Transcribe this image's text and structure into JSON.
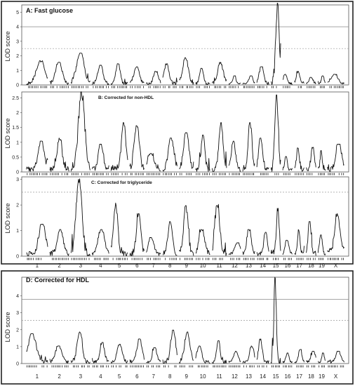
{
  "chart_data": [
    {
      "type": "line",
      "title": "A: Fast glucose",
      "ylabel": "LOD score",
      "ylim": [
        0,
        5.5
      ],
      "yticks": [
        "0",
        "1",
        "2",
        "3",
        "4",
        "5"
      ],
      "thresholds": {
        "solid": 4.0,
        "dashed": 2.5
      },
      "x_categories": [
        "1",
        "2",
        "3",
        "4",
        "5",
        "6",
        "7",
        "8",
        "9",
        "10",
        "11",
        "12",
        "13",
        "14",
        "15",
        "16",
        "17",
        "18",
        "19",
        "X"
      ],
      "show_x_labels": false,
      "peaks": [
        1.6,
        1.5,
        2.1,
        1.3,
        1.4,
        1.2,
        0.9,
        1.4,
        1.8,
        1.1,
        1.5,
        0.6,
        0.6,
        1.2,
        5.4,
        0.7,
        0.9,
        0.5,
        0.6,
        0.7
      ]
    },
    {
      "type": "line",
      "title": "B: Corrected for non-HDL",
      "ylabel": "LOD score",
      "ylim": [
        0,
        2.7
      ],
      "yticks": [
        "0",
        "0.5",
        "1",
        "1.5",
        "2",
        "2.5"
      ],
      "thresholds": {},
      "x_categories": [
        "1",
        "2",
        "3",
        "4",
        "5",
        "6",
        "7",
        "8",
        "9",
        "10",
        "11",
        "12",
        "13",
        "14",
        "15",
        "16",
        "17",
        "18",
        "19",
        "X"
      ],
      "show_x_labels": false,
      "peaks": [
        1.0,
        1.1,
        2.6,
        0.9,
        1.6,
        1.5,
        0.6,
        1.1,
        1.3,
        1.2,
        1.6,
        1.0,
        1.6,
        1.1,
        2.5,
        0.5,
        0.8,
        0.8,
        0.7,
        0.9
      ]
    },
    {
      "type": "line",
      "title": "C: Corrected for triglyceride",
      "ylabel": "LOD score",
      "ylim": [
        0,
        3.1
      ],
      "yticks": [
        "0",
        "1",
        "2",
        "3"
      ],
      "thresholds": {
        "dashed": 2.5
      },
      "x_categories": [
        "1",
        "2",
        "3",
        "4",
        "5",
        "6",
        "7",
        "8",
        "9",
        "10",
        "11",
        "12",
        "13",
        "14",
        "15",
        "16",
        "17",
        "18",
        "19",
        "X"
      ],
      "show_x_labels": true,
      "peaks": [
        1.2,
        1.0,
        3.0,
        1.0,
        2.0,
        1.6,
        0.7,
        1.3,
        1.9,
        1.0,
        2.0,
        0.5,
        1.0,
        0.9,
        1.8,
        0.6,
        1.0,
        1.3,
        0.8,
        1.6
      ]
    },
    {
      "type": "line",
      "title": "D: Corrected for HDL",
      "ylabel": "LOD score",
      "ylim": [
        0,
        5.1
      ],
      "yticks": [
        "0",
        "1",
        "2",
        "3",
        "4"
      ],
      "thresholds": {
        "solid": 3.8,
        "dashed": 2.55
      },
      "x_categories": [
        "1",
        "2",
        "3",
        "4",
        "5",
        "6",
        "7",
        "8",
        "9",
        "10",
        "11",
        "12",
        "13",
        "14",
        "15",
        "16",
        "17",
        "18",
        "19",
        "X"
      ],
      "show_x_labels": true,
      "peaks": [
        1.7,
        1.0,
        1.8,
        1.2,
        1.1,
        1.4,
        0.9,
        1.9,
        1.8,
        1.0,
        1.3,
        0.7,
        1.0,
        1.4,
        4.9,
        0.6,
        0.8,
        0.7,
        0.6,
        0.7
      ]
    }
  ]
}
